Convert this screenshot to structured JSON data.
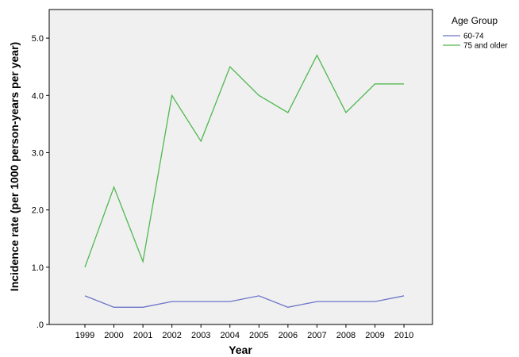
{
  "chart_data": {
    "type": "line",
    "x": [
      "1999",
      "2000",
      "2001",
      "2002",
      "2003",
      "2004",
      "2005",
      "2006",
      "2007",
      "2008",
      "2009",
      "2010"
    ],
    "series": [
      {
        "name": "60-74",
        "color": "#6b74c8",
        "values": [
          0.5,
          0.3,
          0.3,
          0.4,
          0.4,
          0.4,
          0.5,
          0.3,
          0.4,
          0.4,
          0.4,
          0.5
        ]
      },
      {
        "name": "75 and older",
        "color": "#4fb84f",
        "values": [
          1.0,
          2.4,
          1.1,
          4.0,
          3.2,
          4.5,
          4.0,
          3.7,
          4.7,
          3.7,
          4.2,
          4.2
        ]
      }
    ],
    "xlabel": "Year",
    "ylabel": "Incidence rate (per 1000 person-years per year)",
    "ylim": [
      0,
      5.5
    ],
    "yticks": [
      0,
      1,
      2,
      3,
      4,
      5
    ],
    "ytick_labels": [
      ".0",
      "1.0",
      "2.0",
      "3.0",
      "4.0",
      "5.0"
    ],
    "legend_title": "Age Group",
    "legend_position": "top-right outside",
    "grid": false,
    "plot_background": "#f0f0f0"
  }
}
